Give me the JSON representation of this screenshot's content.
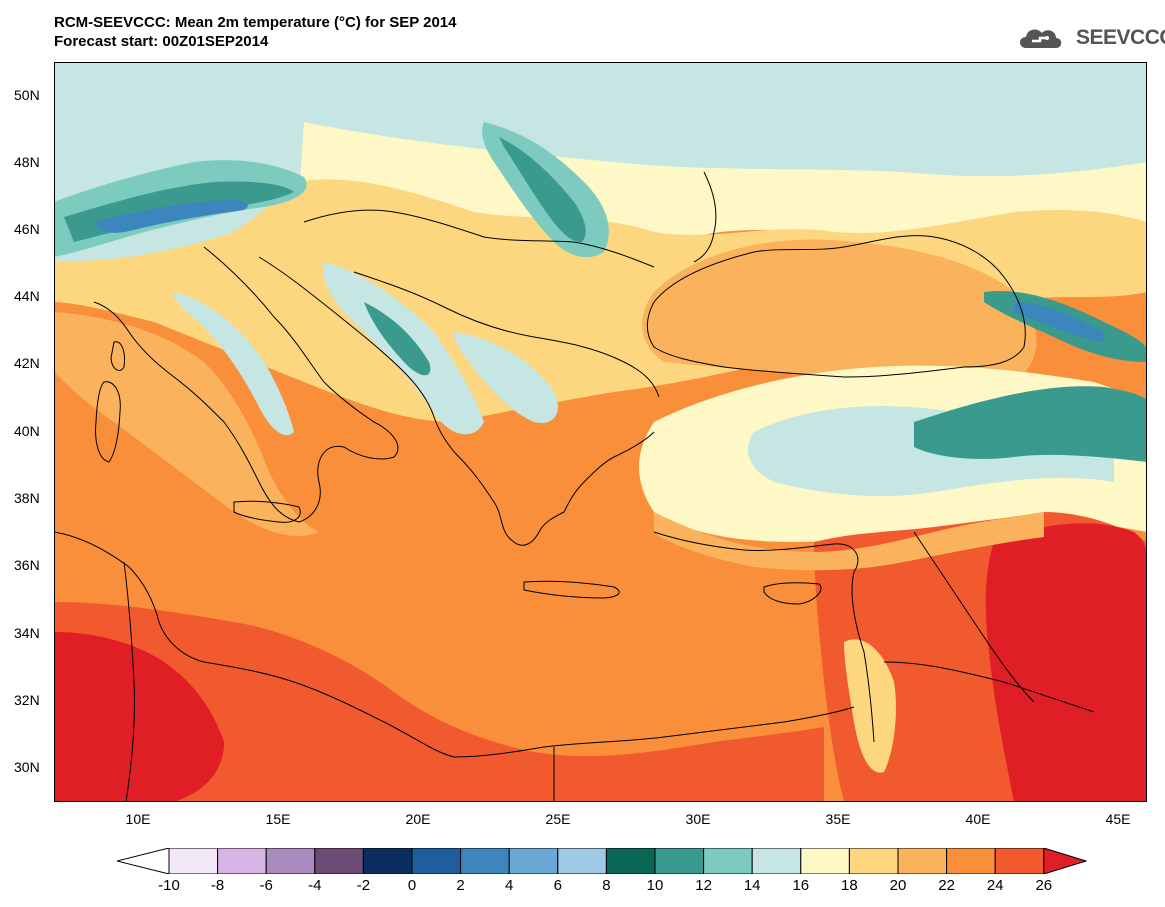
{
  "header": {
    "title_line1": "RCM-SEEVCCC: Mean 2m temperature (°C) for SEP 2014",
    "title_line2": "Forecast start: 00Z01SEP2014",
    "logo_text": "SEEVCCC",
    "logo_icon": "cloud-logo-icon"
  },
  "map": {
    "projection": "lat-lon",
    "lon_range": [
      7,
      46
    ],
    "lat_range": [
      29,
      51
    ],
    "lat_labels": [
      "50N",
      "48N",
      "46N",
      "44N",
      "42N",
      "40N",
      "38N",
      "36N",
      "34N",
      "32N",
      "30N"
    ],
    "lon_labels": [
      "10E",
      "15E",
      "20E",
      "25E",
      "30E",
      "35E",
      "40E",
      "45E"
    ]
  },
  "colorbar": {
    "levels": [
      "-10",
      "-8",
      "-6",
      "-4",
      "-2",
      "0",
      "2",
      "4",
      "6",
      "8",
      "10",
      "12",
      "14",
      "16",
      "18",
      "20",
      "22",
      "24",
      "26"
    ],
    "colors": [
      "#ffffff",
      "#f1e7f7",
      "#d7b4e4",
      "#a98bbf",
      "#6a4c75",
      "#0c2e5f",
      "#1f5e9e",
      "#3d86bd",
      "#6aa9d6",
      "#9ec8e3",
      "#0a6655",
      "#3a9a8d",
      "#7ccbbe",
      "#c5e6e2",
      "#fdf8c6",
      "#fdd77f",
      "#fbb25c",
      "#f98f3a",
      "#f15a2e",
      "#e01e25"
    ]
  }
}
